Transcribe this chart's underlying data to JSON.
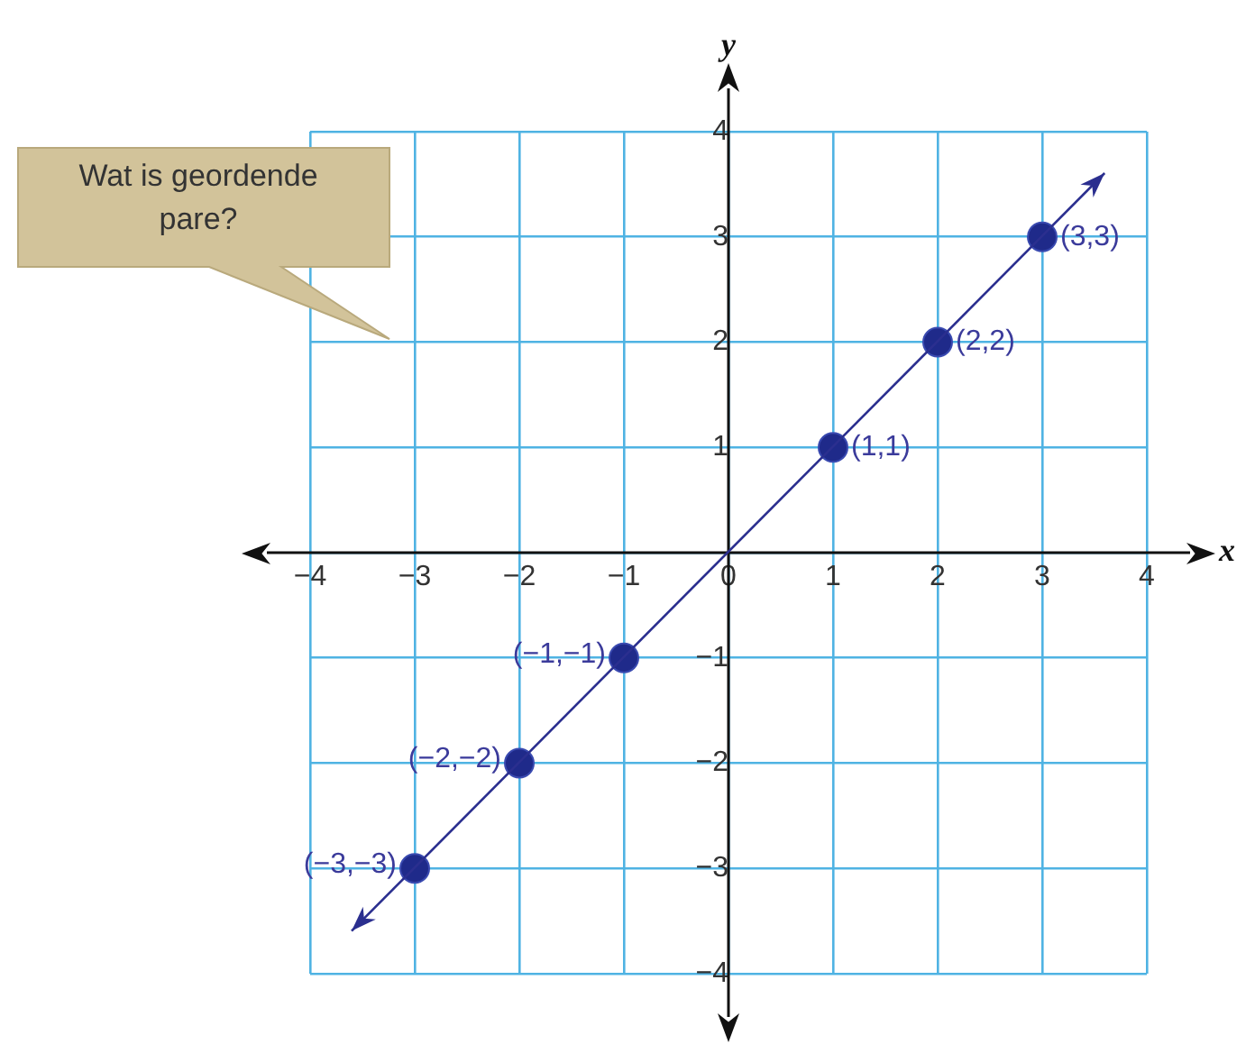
{
  "chart_data": {
    "type": "scatter",
    "xlabel": "x",
    "ylabel": "y",
    "annotations": [
      "Wat is geordende pare?",
      {
        "text": "(−3,−3)",
        "x": -3,
        "y": -3
      },
      {
        "text": "(−2,−2)",
        "x": -2,
        "y": -2
      },
      {
        "text": "(−1,−1)",
        "x": -1,
        "y": -1
      },
      {
        "text": "(1,1)",
        "x": 1,
        "y": 1
      },
      {
        "text": "(2,2)",
        "x": 2,
        "y": 2
      },
      {
        "text": "(3,3)",
        "x": 3,
        "y": 3
      }
    ],
    "xlim": [
      -4,
      4
    ],
    "ylim": [
      -4,
      4
    ],
    "xticks": [
      {
        "value": -4,
        "label": "−4"
      },
      {
        "value": -3,
        "label": "−3"
      },
      {
        "value": -2,
        "label": "−2"
      },
      {
        "value": -1,
        "label": "−1"
      },
      0,
      1,
      2,
      3,
      4
    ],
    "yticks": [
      {
        "value": -4,
        "label": "−4"
      },
      {
        "value": -3,
        "label": "−3"
      },
      {
        "value": -2,
        "label": "−2"
      },
      {
        "value": -1,
        "label": "−1"
      },
      {
        "value": 0,
        "label": null
      },
      1,
      2,
      3,
      4
    ],
    "grid": true,
    "legend": false,
    "marker": "circle",
    "series": [
      {
        "type": "scatter",
        "x": [
          -3,
          -2,
          -1,
          1,
          2,
          3
        ],
        "values": [
          -3,
          -2,
          -1,
          1,
          2,
          3
        ],
        "color": "#1f2a8a"
      }
    ]
  }
}
